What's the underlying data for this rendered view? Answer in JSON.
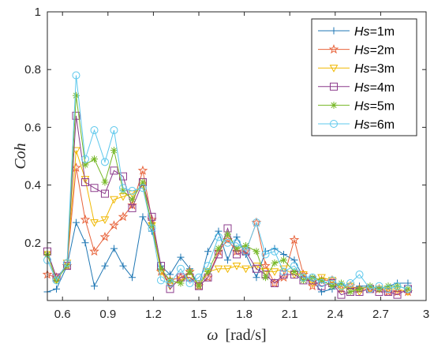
{
  "chart_data": {
    "type": "line",
    "xlabel_symbol": "ω",
    "xlabel_unit": "[rad/s]",
    "ylabel": "Coh",
    "xlim": [
      0.5,
      3.0
    ],
    "ylim": [
      0.0,
      1.0
    ],
    "xticks": [
      0.6,
      0.9,
      1.2,
      1.5,
      1.8,
      2.1,
      2.4,
      2.7,
      3.0
    ],
    "xtick_labels": [
      "0.6",
      "0.9",
      "1.2",
      "1.5",
      "1.8",
      "2.1",
      "2.4",
      "2.7",
      "3"
    ],
    "yticks": [
      0.2,
      0.4,
      0.6,
      0.8,
      1.0
    ],
    "ytick_labels": [
      "0.2",
      "0.4",
      "0.6",
      "0.8",
      "1"
    ],
    "legend_position": "top-right",
    "x": [
      0.5,
      0.56,
      0.63,
      0.69,
      0.75,
      0.81,
      0.88,
      0.94,
      1.0,
      1.06,
      1.13,
      1.19,
      1.25,
      1.31,
      1.38,
      1.44,
      1.5,
      1.56,
      1.63,
      1.69,
      1.75,
      1.81,
      1.88,
      1.94,
      2.0,
      2.06,
      2.13,
      2.19,
      2.25,
      2.31,
      2.38,
      2.44,
      2.5,
      2.56,
      2.63,
      2.69,
      2.75,
      2.81,
      2.88
    ],
    "series": [
      {
        "name_var": "Hs",
        "name_value": "=1m",
        "color": "#1f77b4",
        "marker": "plus",
        "values": [
          0.03,
          0.04,
          0.12,
          0.27,
          0.2,
          0.05,
          0.12,
          0.18,
          0.12,
          0.08,
          0.29,
          0.24,
          0.12,
          0.09,
          0.15,
          0.11,
          0.05,
          0.17,
          0.24,
          0.14,
          0.22,
          0.16,
          0.08,
          0.17,
          0.18,
          0.16,
          0.14,
          0.08,
          0.07,
          0.03,
          0.04,
          0.06,
          0.04,
          0.05,
          0.05,
          0.04,
          0.05,
          0.06,
          0.06
        ]
      },
      {
        "name_var": "Hs",
        "name_value": "=2m",
        "color": "#e8643c",
        "marker": "star",
        "values": [
          0.09,
          0.08,
          0.12,
          0.46,
          0.28,
          0.17,
          0.22,
          0.26,
          0.29,
          0.33,
          0.45,
          0.28,
          0.1,
          0.07,
          0.08,
          0.1,
          0.05,
          0.08,
          0.17,
          0.21,
          0.17,
          0.17,
          0.27,
          0.12,
          0.06,
          0.08,
          0.21,
          0.09,
          0.05,
          0.07,
          0.07,
          0.04,
          0.05,
          0.04,
          0.04,
          0.04,
          0.03,
          0.03,
          0.03
        ]
      },
      {
        "name_var": "Hs",
        "name_value": "=3m",
        "color": "#f0b800",
        "marker": "triangle-down",
        "values": [
          0.16,
          0.07,
          0.13,
          0.52,
          0.42,
          0.27,
          0.28,
          0.35,
          0.36,
          0.37,
          0.4,
          0.26,
          0.1,
          0.05,
          0.07,
          0.08,
          0.06,
          0.1,
          0.11,
          0.11,
          0.12,
          0.11,
          0.12,
          0.1,
          0.1,
          0.11,
          0.09,
          0.09,
          0.06,
          0.08,
          0.07,
          0.04,
          0.05,
          0.03,
          0.04,
          0.04,
          0.04,
          0.04,
          0.03
        ]
      },
      {
        "name_var": "Hs",
        "name_value": "=4m",
        "color": "#8c3c8c",
        "marker": "square",
        "values": [
          0.17,
          0.08,
          0.12,
          0.64,
          0.41,
          0.39,
          0.37,
          0.45,
          0.43,
          0.32,
          0.41,
          0.29,
          0.12,
          0.04,
          0.08,
          0.08,
          0.05,
          0.08,
          0.16,
          0.25,
          0.16,
          0.17,
          0.11,
          0.09,
          0.06,
          0.09,
          0.09,
          0.07,
          0.07,
          0.05,
          0.06,
          0.02,
          0.03,
          0.03,
          0.04,
          0.03,
          0.03,
          0.02,
          0.04
        ]
      },
      {
        "name_var": "Hs",
        "name_value": "=5m",
        "color": "#77b828",
        "marker": "asterisk",
        "values": [
          0.16,
          0.07,
          0.12,
          0.71,
          0.47,
          0.49,
          0.41,
          0.52,
          0.38,
          0.35,
          0.41,
          0.26,
          0.11,
          0.07,
          0.06,
          0.1,
          0.05,
          0.1,
          0.18,
          0.23,
          0.18,
          0.19,
          0.17,
          0.08,
          0.13,
          0.14,
          0.1,
          0.07,
          0.08,
          0.07,
          0.05,
          0.06,
          0.03,
          0.04,
          0.05,
          0.04,
          0.05,
          0.05,
          0.04
        ]
      },
      {
        "name_var": "Hs",
        "name_value": "=6m",
        "color": "#5ec8ec",
        "marker": "circle",
        "values": [
          0.14,
          0.07,
          0.13,
          0.78,
          0.49,
          0.59,
          0.48,
          0.59,
          0.39,
          0.38,
          0.39,
          0.25,
          0.07,
          0.06,
          0.11,
          0.06,
          0.08,
          0.12,
          0.22,
          0.2,
          0.2,
          0.17,
          0.27,
          0.16,
          0.17,
          0.1,
          0.12,
          0.08,
          0.08,
          0.06,
          0.07,
          0.05,
          0.06,
          0.09,
          0.04,
          0.05,
          0.04,
          0.05,
          0.04
        ]
      }
    ]
  }
}
